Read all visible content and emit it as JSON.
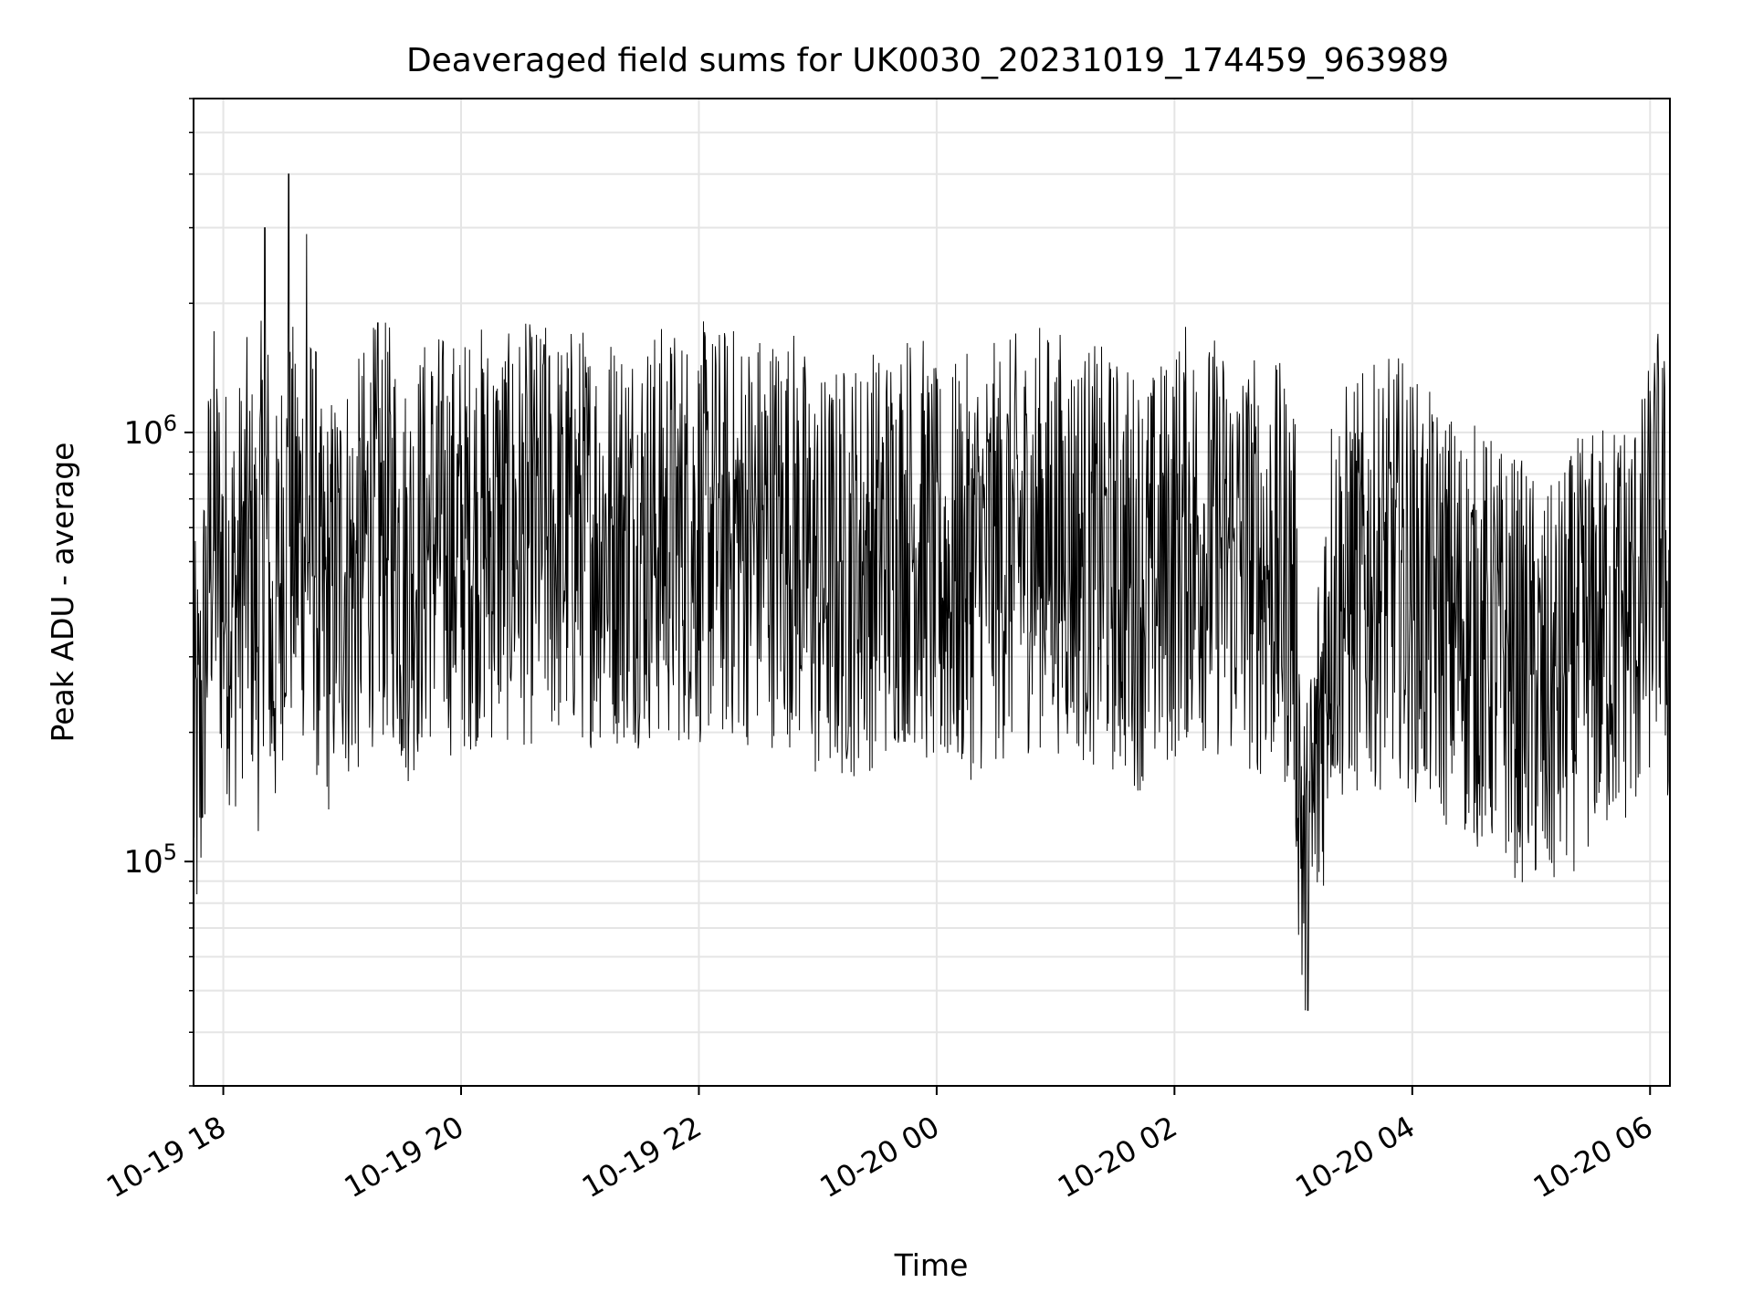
{
  "chart_data": {
    "type": "line",
    "title": "Deaveraged field sums for UK0030_20231019_174459_963989",
    "xlabel": "Time",
    "ylabel": "Peak ADU - average",
    "x_range": [
      "2023-10-19 17:45",
      "2023-10-20 06:10"
    ],
    "ylim": [
      30000,
      6000000
    ],
    "y_scale": "log",
    "grid": true,
    "legend": "none",
    "x_ticks": [
      "10-19 18",
      "10-19 20",
      "10-19 22",
      "10-20 00",
      "10-20 02",
      "10-20 04",
      "10-20 06"
    ],
    "y_ticks": [
      {
        "label": "10",
        "exponent": "5",
        "value": 100000
      },
      {
        "label": "10",
        "exponent": "6",
        "value": 1000000
      }
    ],
    "line_color": "#000000",
    "series": [
      {
        "x_hours": [
          17.8,
          17.9,
          18.0,
          18.1,
          18.2,
          18.3,
          18.35,
          18.4,
          18.5,
          18.55,
          18.6,
          18.7,
          18.8,
          18.9,
          19.0,
          19.1,
          19.2,
          19.3,
          19.5,
          19.75,
          20.0,
          20.2,
          20.4,
          20.5,
          20.7,
          20.85,
          21.0,
          21.3,
          21.6,
          21.9,
          22.2,
          22.45,
          22.7,
          22.85,
          23.0,
          23.3,
          23.6,
          23.8,
          24.0,
          24.3,
          24.6,
          24.9,
          25.2,
          25.5,
          25.8,
          26.1,
          26.4,
          26.7,
          27.0,
          27.1,
          27.3,
          27.6,
          27.9,
          28.1,
          28.4,
          28.7,
          29.0,
          29.1,
          29.4,
          29.7,
          29.95,
          30.0,
          30.1,
          30.2
        ],
        "values": [
          200000,
          700000,
          500000,
          450000,
          600000,
          400000,
          3000000,
          300000,
          600000,
          4000000,
          500000,
          2900000,
          400000,
          450000,
          550000,
          500000,
          600000,
          1800000,
          500000,
          650000,
          600000,
          700000,
          1700000,
          650000,
          1600000,
          600000,
          800000,
          750000,
          700000,
          800000,
          750000,
          700000,
          800000,
          600000,
          500000,
          550000,
          600000,
          700000,
          500000,
          550000,
          600000,
          650000,
          600000,
          550000,
          500000,
          650000,
          600000,
          550000,
          500000,
          80000,
          450000,
          500000,
          550000,
          450000,
          400000,
          350000,
          300000,
          250000,
          350000,
          400000,
          450000,
          550000,
          700000,
          250000
        ]
      }
    ]
  }
}
